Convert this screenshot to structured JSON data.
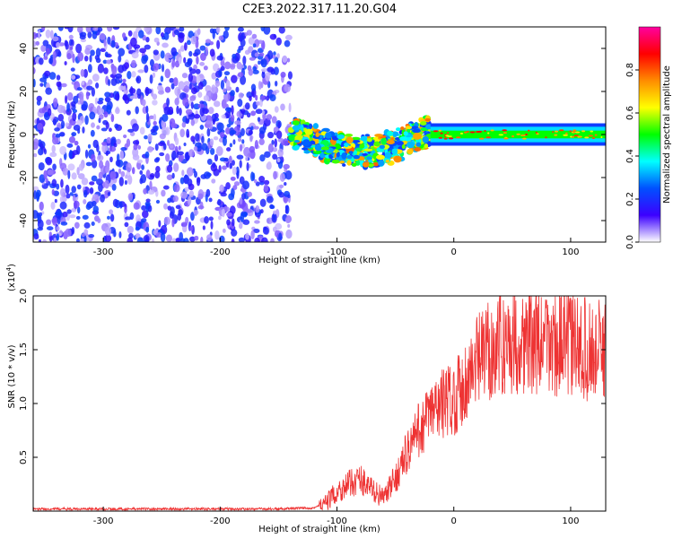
{
  "title": "C2E3.2022.317.11.20.G04",
  "chart_data": [
    {
      "type": "heatmap",
      "panel": "top",
      "xlabel": "Height of straight line (km)",
      "ylabel": "Frequency (Hz)",
      "xlim": [
        -360,
        130
      ],
      "ylim": [
        -50,
        50
      ],
      "xticks": [
        -300,
        -200,
        -100,
        0,
        100
      ],
      "yticks": [
        -40,
        -20,
        0,
        20,
        40
      ],
      "colorbar": {
        "label": "Normalized spectral amplitude",
        "range": [
          0.0,
          1.0
        ],
        "ticks": [
          "0.0",
          "0.2",
          "0.4",
          "0.6",
          "0.8"
        ],
        "tick_values": [
          0.0,
          0.2,
          0.4,
          0.6,
          0.8
        ],
        "colormap": [
          "#ff00a0",
          "#ff0000",
          "#ff8c00",
          "#ffff00",
          "#00ff00",
          "#00ffff",
          "#0050ff",
          "#3c00ff",
          "#ffffff"
        ]
      },
      "regions": [
        {
          "name": "noise",
          "x": [
            -360,
            -140
          ],
          "freq": [
            -50,
            50
          ],
          "level": 0.15
        },
        {
          "name": "signal-onset",
          "x": [
            -140,
            -20
          ],
          "freq_center": [
            2,
            -8
          ],
          "freq_spread": 8,
          "level": 0.45
        },
        {
          "name": "steady-signal",
          "x": [
            -20,
            130
          ],
          "freq_center": [
            0,
            0
          ],
          "freq_spread": 2,
          "level": 0.5
        }
      ]
    },
    {
      "type": "line",
      "panel": "bottom",
      "xlabel": "Height of straight line (km)",
      "ylabel": "SNR (10 * v/v)",
      "yscale_label": "(x10",
      "yscale_exp": "4",
      "yscale_suffix": ")",
      "xlim": [
        -360,
        130
      ],
      "ylim": [
        0,
        2.0
      ],
      "xticks": [
        -300,
        -200,
        -100,
        0,
        100
      ],
      "yticks": [
        "0.5",
        "1.0",
        "1.5",
        "2.0"
      ],
      "ytick_values": [
        0.5,
        1.0,
        1.5,
        2.0
      ],
      "color": "#ee3333",
      "series": [
        {
          "name": "SNR",
          "x": [
            -360,
            -300,
            -250,
            -200,
            -150,
            -120,
            -110,
            -100,
            -90,
            -80,
            -70,
            -60,
            -50,
            -40,
            -30,
            -20,
            -10,
            0,
            10,
            20,
            30,
            40,
            50,
            60,
            80,
            100,
            120,
            130
          ],
          "values": [
            0.02,
            0.02,
            0.02,
            0.02,
            0.02,
            0.03,
            0.07,
            0.18,
            0.25,
            0.3,
            0.2,
            0.12,
            0.3,
            0.55,
            0.75,
            0.9,
            1.0,
            1.05,
            1.2,
            1.38,
            1.5,
            1.55,
            1.58,
            1.58,
            1.55,
            1.55,
            1.48,
            1.5
          ]
        }
      ]
    }
  ]
}
